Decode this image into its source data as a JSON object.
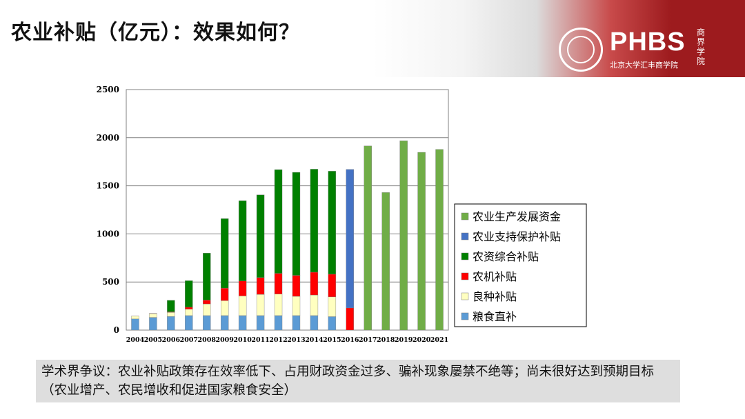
{
  "header": {
    "title": "农业补贴（亿元）：效果如何？",
    "logo_text": "PHBS",
    "logo_subtitle": "北京大学汇丰商学院",
    "logo_calligraphy": "商界学院"
  },
  "note": "学术界争议：农业补贴政策存在效率低下、占用财政资金过多、骗补现象屡禁不绝等；尚未很好达到预期目标（农业增产、农民增收和促进国家粮食安全）",
  "chart_data": {
    "type": "bar",
    "stacked": true,
    "categories": [
      "2004",
      "2005",
      "2006",
      "2007",
      "2008",
      "2009",
      "2010",
      "2011",
      "2012",
      "2013",
      "2014",
      "2015",
      "2016",
      "2017",
      "2018",
      "2019",
      "2020",
      "2021"
    ],
    "ylim": [
      0,
      2500
    ],
    "yticks": [
      "0",
      "500",
      "1000",
      "1500",
      "2000",
      "2500"
    ],
    "grid": true,
    "legend_position": "right",
    "series": [
      {
        "name": "粮食直补",
        "color": "#5b9bd5",
        "values": [
          116,
          132,
          142,
          151,
          151,
          151,
          151,
          151,
          151,
          151,
          151,
          140,
          0,
          0,
          0,
          0,
          0,
          0
        ]
      },
      {
        "name": "良种补贴",
        "color": "#ffffc0",
        "values": [
          29,
          39,
          42,
          67,
          121,
          155,
          204,
          220,
          224,
          200,
          214,
          205,
          0,
          0,
          0,
          0,
          0,
          0
        ]
      },
      {
        "name": "农机补贴",
        "color": "#ff0000",
        "values": [
          1,
          3,
          6,
          20,
          40,
          130,
          155,
          175,
          215,
          218,
          237,
          236,
          230,
          0,
          0,
          0,
          0,
          0
        ]
      },
      {
        "name": "农资综合补贴",
        "color": "#008000",
        "values": [
          0,
          0,
          120,
          276,
          488,
          723,
          835,
          860,
          1078,
          1071,
          1071,
          1071,
          0,
          0,
          0,
          0,
          0,
          0
        ]
      },
      {
        "name": "农业支持保护补贴",
        "color": "#4472c4",
        "values": [
          0,
          0,
          0,
          0,
          0,
          0,
          0,
          0,
          0,
          0,
          0,
          0,
          1440,
          0,
          0,
          0,
          0,
          0
        ]
      },
      {
        "name": "农业生产发展资金",
        "color": "#70ad47",
        "values": [
          0,
          0,
          0,
          0,
          0,
          0,
          0,
          0,
          0,
          0,
          0,
          0,
          0,
          1914,
          1430,
          1968,
          1848,
          1878
        ]
      }
    ]
  }
}
